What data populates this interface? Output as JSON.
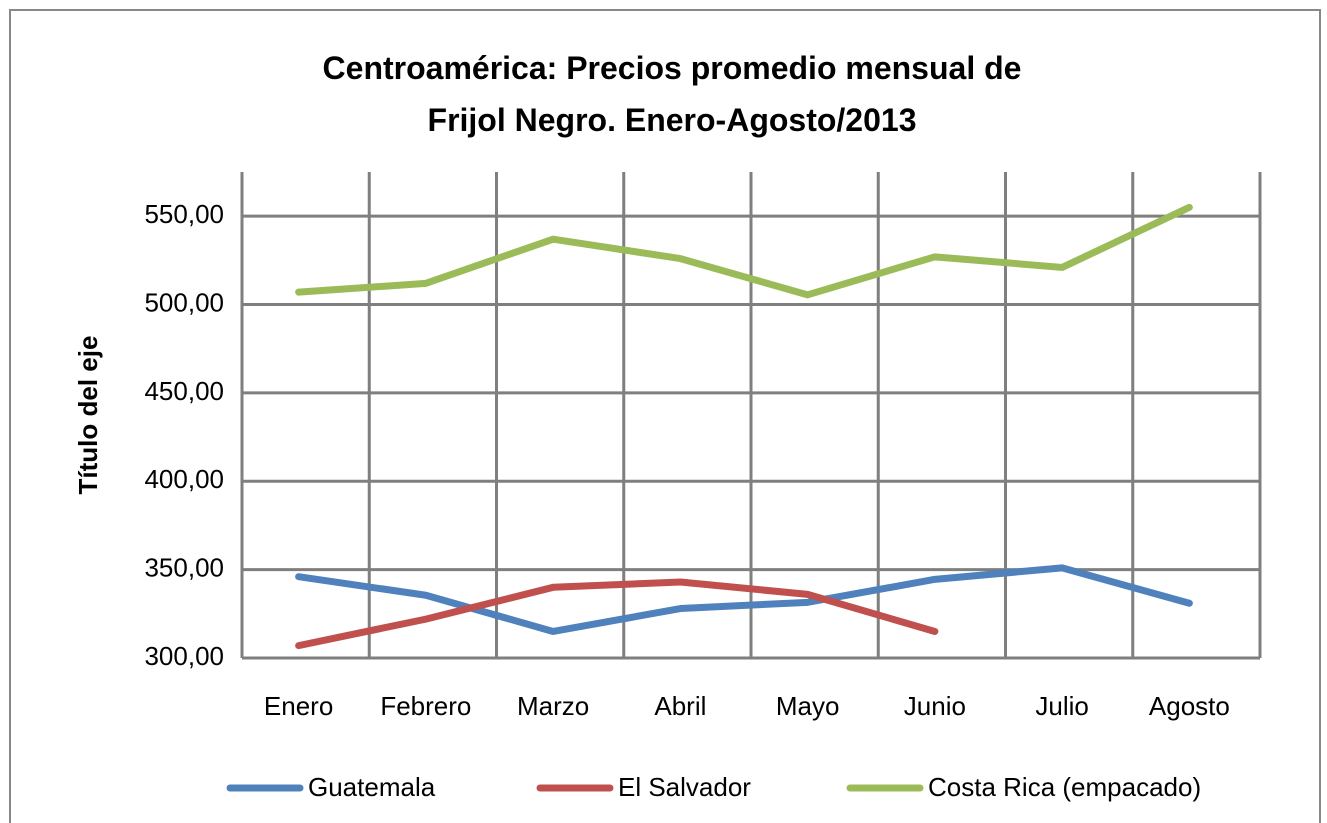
{
  "chart_data": {
    "type": "line",
    "title": "Centroamérica: Precios promedio mensual de Frijol Negro. Enero-Agosto/2013",
    "y_label": "Título del eje",
    "categories": [
      "Enero",
      "Febrero",
      "Marzo",
      "Abril",
      "Mayo",
      "Junio",
      "Julio",
      "Agosto"
    ],
    "series": [
      {
        "name": "Guatemala",
        "color": "#4f81bd",
        "values": [
          346,
          335.5,
          315,
          328,
          331.5,
          344.5,
          351,
          331
        ]
      },
      {
        "name": "El Salvador",
        "color": "#c0504d",
        "values": [
          307,
          322,
          340,
          343,
          336,
          315,
          null,
          null
        ]
      },
      {
        "name": "Costa Rica (empacado)",
        "color": "#9bbb59",
        "values": [
          507,
          512,
          537,
          526,
          505.5,
          527,
          521,
          555
        ]
      }
    ],
    "ylim": [
      300,
      575
    ],
    "yticks": [
      {
        "value": 300,
        "label": "300,00"
      },
      {
        "value": 350,
        "label": "350,00"
      },
      {
        "value": 400,
        "label": "400,00"
      },
      {
        "value": 450,
        "label": "450,00"
      },
      {
        "value": 500,
        "label": "500,00"
      },
      {
        "value": 550,
        "label": "550,00"
      }
    ],
    "grid": true,
    "legend": "bottom"
  }
}
